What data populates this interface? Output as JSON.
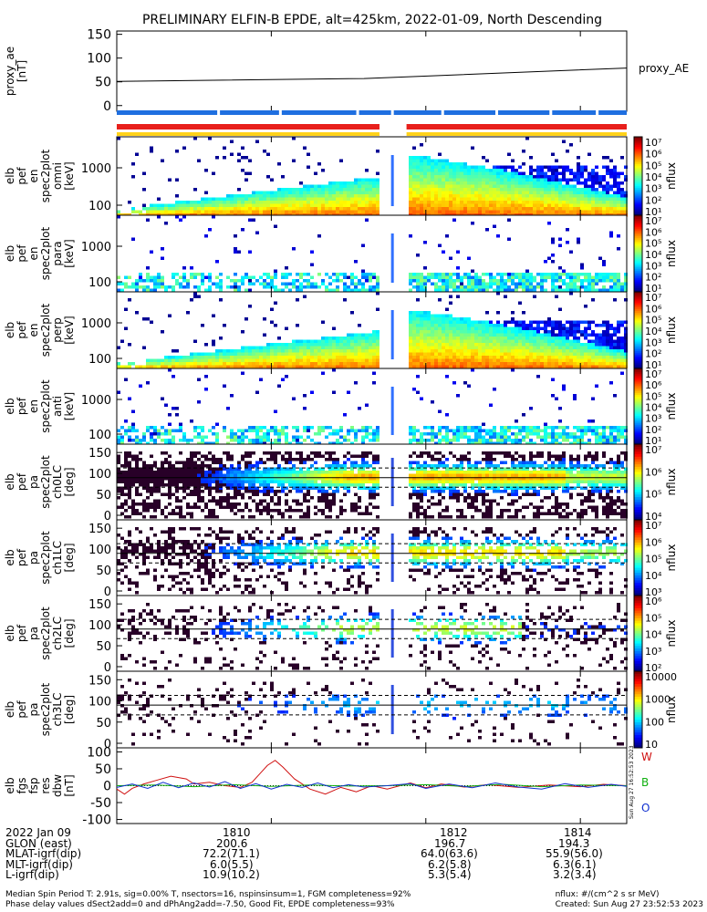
{
  "title": "PRELIMINARY ELFIN-B EPDE, alt=425km, 2022-01-09, North Descending",
  "colors": {
    "red_bar": "#e8201c",
    "blue_bar": "#1f6fe0",
    "yellow_bar": "#ffd21a",
    "W": "#d01010",
    "B": "#10b010",
    "O": "#1030d0"
  },
  "chart_data": [
    {
      "id": "proxy_ae",
      "type": "line",
      "ylabel_lines": [
        "proxy_ae",
        "[nT]"
      ],
      "yticks": [
        0,
        50,
        100,
        150
      ],
      "ylim": [
        -12,
        157
      ],
      "xlim": [
        1808.0,
        1814.6
      ],
      "series": [
        {
          "name": "proxy_AE",
          "x": [
            1808.0,
            1811.2,
            1814.6
          ],
          "y": [
            51,
            57,
            79
          ]
        }
      ]
    },
    {
      "id": "state_bars",
      "type": "bar",
      "segments": [
        {
          "color": "blue",
          "x0": 1808.0,
          "x1": 1814.6
        },
        {
          "color": "red",
          "x0": 1808.0,
          "x1": 1811.4
        },
        {
          "color": "red",
          "x0": 1811.75,
          "x1": 1814.6
        },
        {
          "color": "yellow",
          "x0": 1808.0,
          "x1": 1814.6
        }
      ]
    },
    {
      "id": "spec_omni",
      "type": "heatmap",
      "ylabel_lines": [
        "elb",
        "pef",
        "en",
        "spec2plot",
        "omni",
        "[keV]"
      ],
      "yticks": [
        "100",
        "1000"
      ],
      "colorbar_ticks": [
        "10⁷",
        "10⁶",
        "10⁵",
        "10⁴",
        "10³",
        "10²",
        "10¹"
      ],
      "zlabel": "nflux"
    },
    {
      "id": "spec_par",
      "type": "heatmap",
      "ylabel_lines": [
        "elb",
        "pef",
        "en",
        "spec2plot",
        "para",
        "[keV]"
      ],
      "yticks": [
        "100",
        "1000"
      ],
      "colorbar_ticks": [
        "10⁷",
        "10⁶",
        "10⁵",
        "10⁴",
        "10³",
        "10²",
        "10¹"
      ],
      "zlabel": "nflux"
    },
    {
      "id": "spec_perp",
      "type": "heatmap",
      "ylabel_lines": [
        "elb",
        "pef",
        "en",
        "spec2plot",
        "perp",
        "[keV]"
      ],
      "yticks": [
        "100",
        "1000"
      ],
      "colorbar_ticks": [
        "10⁷",
        "10⁶",
        "10⁵",
        "10⁴",
        "10³",
        "10²",
        "10¹"
      ],
      "zlabel": "nflux"
    },
    {
      "id": "spec_anti",
      "type": "heatmap",
      "ylabel_lines": [
        "elb",
        "pef",
        "en",
        "spec2plot",
        "anti",
        "[keV]"
      ],
      "yticks": [
        "100",
        "1000"
      ],
      "colorbar_ticks": [
        "10⁷",
        "10⁶",
        "10⁵",
        "10⁴",
        "10³",
        "10²",
        "10¹"
      ],
      "zlabel": "nflux"
    },
    {
      "id": "pa_ch0",
      "type": "heatmap",
      "ylabel_lines": [
        "elb",
        "pef",
        "pa",
        "spec2plot",
        "ch0LC",
        "[deg]"
      ],
      "yticks": [
        "0",
        "50",
        "100",
        "150"
      ],
      "colorbar_ticks": [
        "10⁷",
        "10⁶",
        "10⁵",
        "10⁴"
      ],
      "zlabel": "nflux"
    },
    {
      "id": "pa_ch1",
      "type": "heatmap",
      "ylabel_lines": [
        "elb",
        "pef",
        "pa",
        "spec2plot",
        "ch1LC",
        "[deg]"
      ],
      "yticks": [
        "0",
        "50",
        "100",
        "150"
      ],
      "colorbar_ticks": [
        "10⁷",
        "10⁶",
        "10⁵",
        "10⁴",
        "10³"
      ],
      "zlabel": "nflux"
    },
    {
      "id": "pa_ch2",
      "type": "heatmap",
      "ylabel_lines": [
        "elb",
        "pef",
        "pa",
        "spec2plot",
        "ch2LC",
        "[deg]"
      ],
      "yticks": [
        "0",
        "50",
        "100",
        "150"
      ],
      "colorbar_ticks": [
        "10⁶",
        "10⁵",
        "10⁴",
        "10³",
        "10²"
      ],
      "zlabel": "nflux"
    },
    {
      "id": "pa_ch3",
      "type": "heatmap",
      "ylabel_lines": [
        "elb",
        "pef",
        "pa",
        "spec2plot",
        "ch3LC",
        "[deg]"
      ],
      "yticks": [
        "0",
        "50",
        "100",
        "150"
      ],
      "colorbar_ticks": [
        "10000",
        "1000",
        "100",
        "10"
      ],
      "zlabel": "nflux"
    },
    {
      "id": "fgs",
      "type": "line",
      "ylabel_lines": [
        "elb",
        "fgs",
        "fsp",
        "res",
        "dbw",
        "[nT]"
      ],
      "yticks": [
        -100,
        -50,
        0,
        50,
        100
      ],
      "ylim": [
        -112,
        112
      ],
      "xlim": [
        1808.0,
        1814.6
      ],
      "series": [
        {
          "name": "W",
          "x": [
            1808.0,
            1808.1,
            1808.2,
            1808.35,
            1808.5,
            1808.7,
            1808.9,
            1809.0,
            1809.2,
            1809.4,
            1809.6,
            1809.75,
            1809.85,
            1809.95,
            1810.05,
            1810.15,
            1810.3,
            1810.5,
            1810.7,
            1810.9,
            1811.1,
            1811.3,
            1811.5,
            1811.8,
            1812.0,
            1812.2,
            1812.5,
            1812.8,
            1813.2,
            1813.6,
            1814.0,
            1814.3,
            1814.6
          ],
          "y": [
            -10,
            -25,
            -8,
            5,
            15,
            28,
            20,
            5,
            10,
            0,
            -5,
            10,
            35,
            60,
            75,
            55,
            20,
            -10,
            -25,
            -5,
            -18,
            0,
            -10,
            8,
            -6,
            5,
            -4,
            3,
            -5,
            2,
            -3,
            4,
            0
          ]
        },
        {
          "name": "B",
          "x": [
            1808.0,
            1808.5,
            1809.0,
            1809.5,
            1810.0,
            1810.5,
            1811.0,
            1811.5,
            1812.0,
            1812.5,
            1813.0,
            1813.5,
            1814.0,
            1814.6
          ],
          "y": [
            0,
            2,
            -3,
            3,
            -2,
            2,
            -1,
            0,
            3,
            -2,
            4,
            -3,
            2,
            0
          ]
        },
        {
          "name": "O",
          "x": [
            1808.0,
            1808.2,
            1808.4,
            1808.6,
            1808.8,
            1809.0,
            1809.2,
            1809.4,
            1809.6,
            1809.8,
            1810.0,
            1810.2,
            1810.4,
            1810.6,
            1810.8,
            1811.0,
            1811.2,
            1811.5,
            1811.8,
            1812.0,
            1812.3,
            1812.6,
            1812.9,
            1813.2,
            1813.5,
            1813.8,
            1814.1,
            1814.4,
            1814.6
          ],
          "y": [
            -5,
            5,
            -8,
            10,
            -6,
            8,
            -4,
            12,
            -8,
            6,
            -10,
            4,
            -5,
            8,
            -6,
            3,
            -4,
            0,
            6,
            -8,
            5,
            -6,
            8,
            -4,
            -10,
            6,
            -5,
            4,
            -2
          ]
        }
      ]
    },
    {
      "id": "x_axis",
      "type": "table",
      "xtick_values": [
        1810,
        1812,
        1814
      ],
      "xtick_labels": [
        "1810",
        "1812",
        "1814"
      ]
    }
  ],
  "footer": {
    "date": "2022 Jan 09",
    "rows": [
      {
        "label": "GLON (east)",
        "v1810": "200.6",
        "v1812": "196.7",
        "v1814": "194.3"
      },
      {
        "label": "MLAT-igrf(dip)",
        "v1810": "72.2(71.1)",
        "v1812": "64.0(63.6)",
        "v1814": "55.9(56.0)"
      },
      {
        "label": "MLT-igrf(dip)",
        "v1810": "6.0(5.5)",
        "v1812": "6.2(5.8)",
        "v1814": "6.3(6.1)"
      },
      {
        "label": "L-igrf(dip)",
        "v1810": "10.9(10.2)",
        "v1812": "5.3(5.4)",
        "v1814": "3.2(3.4)"
      }
    ],
    "note1": "Median Spin Period T: 2.91s, sig=0.00% T, nsectors=16, nspinsinsum=1, FGM completeness=92%",
    "note2": "Phase delay values dSect2add=0 and dPhAng2add=-7.50, Good Fit, EPDE completeness=93%",
    "units": "nflux: #/(cm^2 s sr MeV)",
    "created": "Created: Sun Aug 27 23:52:53 2023",
    "side_stamp": "Sun Aug 27 16:52:53 2023",
    "legend_proxy": "proxy_AE",
    "legend_W": "W",
    "legend_B": "B",
    "legend_O": "O"
  }
}
